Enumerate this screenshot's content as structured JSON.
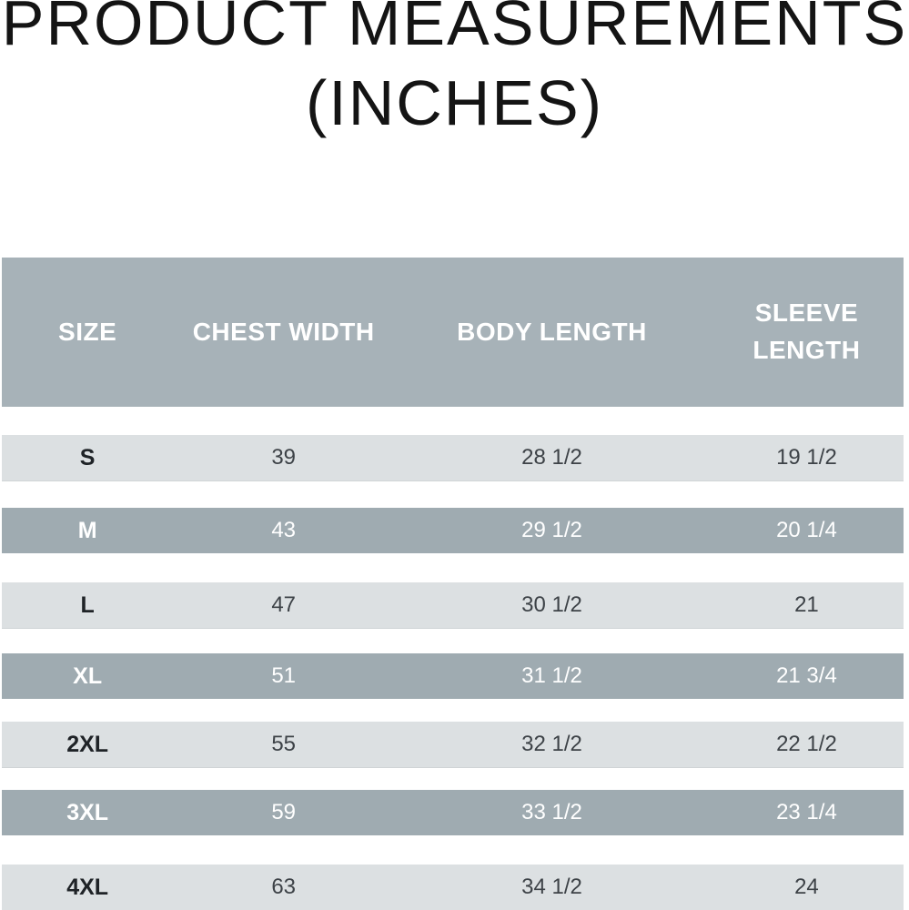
{
  "title": {
    "line1": "PRODUCT MEASUREMENTS",
    "line2": "(INCHES)"
  },
  "chart_data": {
    "type": "table",
    "title": "PRODUCT MEASUREMENTS (INCHES)",
    "columns": [
      "SIZE",
      "CHEST WIDTH",
      "BODY LENGTH",
      "SLEEVE LENGTH"
    ],
    "rows": [
      [
        "S",
        "39",
        "28 1/2",
        "19 1/2"
      ],
      [
        "M",
        "43",
        "29 1/2",
        "20 1/4"
      ],
      [
        "L",
        "47",
        "30 1/2",
        "21"
      ],
      [
        "XL",
        "51",
        "31 1/2",
        "21 3/4"
      ],
      [
        "2XL",
        "55",
        "32 1/2",
        "22 1/2"
      ],
      [
        "3XL",
        "59",
        "33 1/2",
        "23 1/4"
      ],
      [
        "4XL",
        "63",
        "34 1/2",
        "24"
      ]
    ],
    "row_variants": [
      "light",
      "dark",
      "light",
      "dark",
      "light",
      "dark",
      "light"
    ],
    "legend_position": "none",
    "grid": false
  },
  "colors": {
    "header_bg": "#a7b2b8",
    "dark_row_bg": "#9fabb1",
    "light_row_bg": "#dce0e2",
    "header_text": "#ffffff",
    "dark_row_text": "#ffffff",
    "light_row_text": "#3d4247",
    "title_text": "#141414"
  }
}
